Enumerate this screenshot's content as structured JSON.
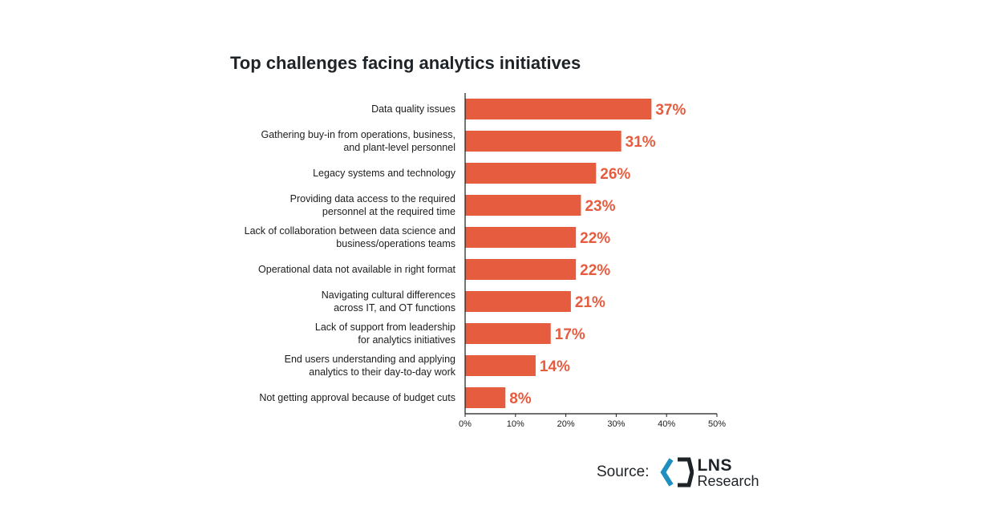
{
  "colors": {
    "bar": "#e65c3f",
    "value_text": "#e65c3f",
    "axis": "#1c1c1c",
    "logo_blue": "#1f8fc0",
    "logo_dark": "#1e2328"
  },
  "chart_data": {
    "type": "bar",
    "orientation": "horizontal",
    "title": "Top challenges facing analytics initiatives",
    "categories": [
      [
        "Data quality issues"
      ],
      [
        "Gathering buy-in from operations, business,",
        "and plant-level personnel"
      ],
      [
        "Legacy systems and technology"
      ],
      [
        "Providing data access to the required",
        "personnel at the required time"
      ],
      [
        "Lack of collaboration between data science and",
        "business/operations teams"
      ],
      [
        "Operational data not available in right format"
      ],
      [
        "Navigating cultural differences",
        "across IT, and OT functions"
      ],
      [
        "Lack of support from leadership",
        "for analytics initiatives"
      ],
      [
        "End users understanding and applying",
        "analytics to their day-to-day work"
      ],
      [
        "Not getting approval because of budget cuts"
      ]
    ],
    "values": [
      37,
      31,
      26,
      23,
      22,
      22,
      21,
      17,
      14,
      8
    ],
    "value_labels": [
      "37%",
      "31%",
      "26%",
      "23%",
      "22%",
      "22%",
      "21%",
      "17%",
      "14%",
      "8%"
    ],
    "xlim": [
      0,
      50
    ],
    "xticks": [
      0,
      10,
      20,
      30,
      40,
      50
    ],
    "xtick_labels": [
      "0%",
      "10%",
      "20%",
      "30%",
      "40%",
      "50%"
    ],
    "grid": false,
    "legend": "none"
  },
  "source": {
    "label": "Source:",
    "logo_line1": "LNS",
    "logo_line2": "Research",
    "logo_icon": "lns-chevron-logo-icon"
  }
}
